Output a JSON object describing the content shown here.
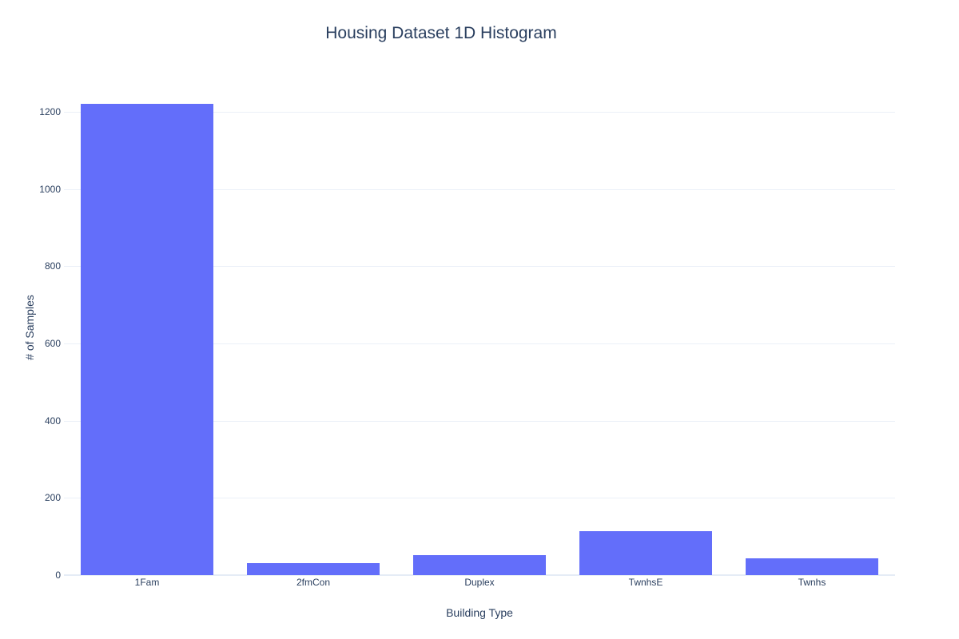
{
  "chart_data": {
    "type": "bar",
    "title": "Housing Dataset 1D Histogram",
    "categories": [
      "1Fam",
      "2fmCon",
      "Duplex",
      "TwnhsE",
      "Twnhs"
    ],
    "values": [
      1220,
      31,
      52,
      114,
      43
    ],
    "xlabel": "Building Type",
    "ylabel": "# of Samples",
    "ylim": [
      0,
      1272
    ],
    "yticks": [
      0,
      200,
      400,
      600,
      800,
      1000,
      1200
    ],
    "grid": true,
    "legend": "none",
    "bar_fraction": 0.8
  },
  "colors": {
    "bar": "#636efa",
    "text": "#2a3f5f",
    "grid": "#ebf0f8",
    "zeroline": "#e5ecf6",
    "background": "#ffffff"
  }
}
